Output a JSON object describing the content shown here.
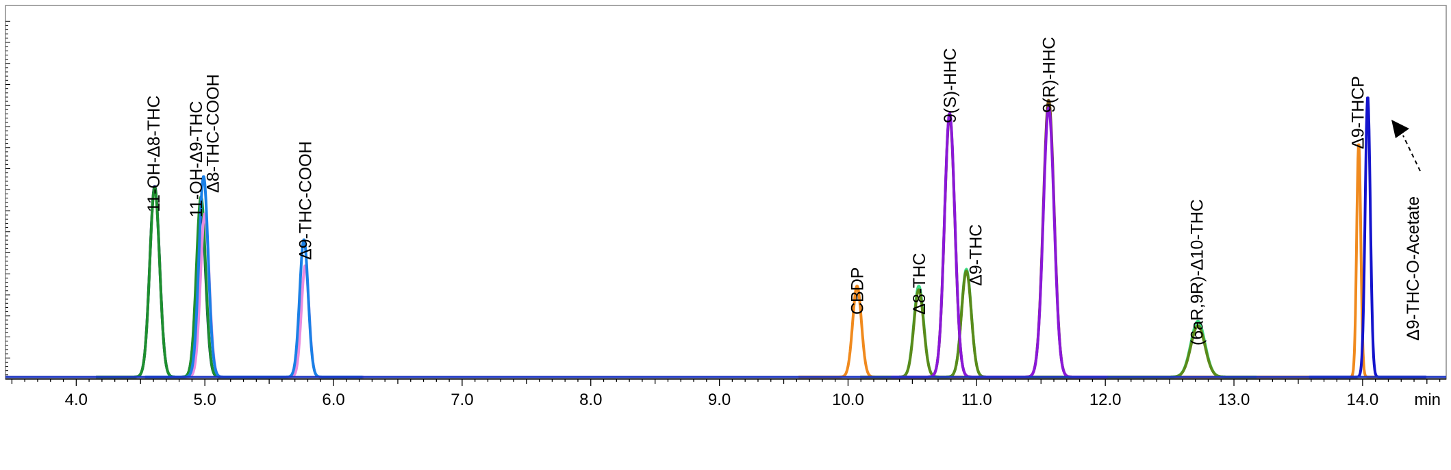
{
  "chart_data": {
    "type": "line",
    "title": "",
    "xlabel": "",
    "ylabel": "",
    "x_unit": "min",
    "xlim": [
      3.45,
      14.65
    ],
    "ylim": [
      0,
      1.0
    ],
    "grid": false,
    "x_ticks": [
      4.0,
      5.0,
      6.0,
      7.0,
      8.0,
      9.0,
      10.0,
      11.0,
      12.0,
      13.0,
      14.0
    ],
    "x_tick_labels": [
      "4.0",
      "5.0",
      "6.0",
      "7.0",
      "8.0",
      "9.0",
      "10.0",
      "11.0",
      "12.0",
      "13.0",
      "14.0"
    ],
    "annotations": [
      {
        "text": "11-OH-Δ8-THC",
        "x": 4.6
      },
      {
        "text": "11-OH-Δ9-THC",
        "x": 4.93
      },
      {
        "text": "Δ8-THC-COOH",
        "x": 5.06
      },
      {
        "text": "Δ9-THC-COOH",
        "x": 5.78
      },
      {
        "text": "CBDP",
        "x": 10.07
      },
      {
        "text": "Δ8-THC",
        "x": 10.55
      },
      {
        "text": "9(S)-HHC",
        "x": 10.79
      },
      {
        "text": "Δ9-THC",
        "x": 10.99
      },
      {
        "text": "9(R)-HHC",
        "x": 11.56
      },
      {
        "text": "(6aR,9R)-Δ10-THC",
        "x": 12.71
      },
      {
        "text": "Δ9-THCP",
        "x": 13.96
      },
      {
        "text": "Δ9-THC-O-Acetate",
        "x": 14.39
      }
    ],
    "series": [
      {
        "color": "#0b1460",
        "peaks": [
          {
            "x": 4.61,
            "y": 0.513,
            "w": 0.038
          },
          {
            "x": 4.97,
            "y": 0.457,
            "w": 0.036
          }
        ]
      },
      {
        "color": "#1e8f2f",
        "peaks": [
          {
            "x": 4.61,
            "y": 0.51,
            "w": 0.038
          },
          {
            "x": 4.97,
            "y": 0.485,
            "w": 0.036
          }
        ]
      },
      {
        "color": "#e88ce0",
        "peaks": [
          {
            "x": 5.0,
            "y": 0.44,
            "w": 0.034
          },
          {
            "x": 5.78,
            "y": 0.3,
            "w": 0.03
          }
        ]
      },
      {
        "color": "#1a80e6",
        "peaks": [
          {
            "x": 4.99,
            "y": 0.54,
            "w": 0.036
          },
          {
            "x": 5.77,
            "y": 0.37,
            "w": 0.033
          }
        ]
      },
      {
        "color": "#f08a1e",
        "peaks": [
          {
            "x": 10.07,
            "y": 0.245,
            "w": 0.034
          },
          {
            "x": 13.97,
            "y": 0.63,
            "w": 0.016
          }
        ]
      },
      {
        "color": "#3ddc84",
        "peaks": [
          {
            "x": 10.55,
            "y": 0.245,
            "w": 0.038
          },
          {
            "x": 10.92,
            "y": 0.29,
            "w": 0.038
          },
          {
            "x": 12.72,
            "y": 0.15,
            "w": 0.055
          }
        ]
      },
      {
        "color": "#5a8a1a",
        "peaks": [
          {
            "x": 10.55,
            "y": 0.235,
            "w": 0.038
          },
          {
            "x": 10.92,
            "y": 0.285,
            "w": 0.038
          },
          {
            "x": 12.72,
            "y": 0.138,
            "w": 0.055
          }
        ]
      },
      {
        "color": "#6b4a12",
        "peaks": [
          {
            "x": 10.79,
            "y": 0.705,
            "w": 0.04
          },
          {
            "x": 11.56,
            "y": 0.745,
            "w": 0.042
          }
        ]
      },
      {
        "color": "#8a18d8",
        "peaks": [
          {
            "x": 10.79,
            "y": 0.71,
            "w": 0.04
          },
          {
            "x": 11.56,
            "y": 0.725,
            "w": 0.042
          }
        ]
      },
      {
        "color": "#1414cc",
        "peaks": [
          {
            "x": 14.04,
            "y": 0.755,
            "w": 0.02
          }
        ]
      }
    ]
  }
}
